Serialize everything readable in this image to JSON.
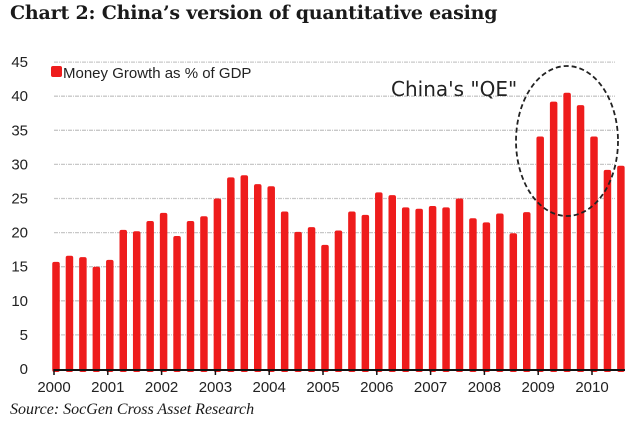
{
  "title": "Chart 2:  China’s version of quantitative easing",
  "source": "Source: SocGen Cross Asset Research",
  "chart_data": {
    "type": "bar",
    "title": "Chart 2:  China’s version of quantitative easing",
    "xlabel": "",
    "ylabel": "",
    "ylim": [
      0,
      45
    ],
    "yticks": [
      0,
      5,
      10,
      15,
      20,
      25,
      30,
      35,
      40,
      45
    ],
    "grid": true,
    "legend": {
      "position": "top-left",
      "entries": [
        "Money Growth as % of GDP"
      ]
    },
    "xtick_labels": [
      "2000",
      "2001",
      "2002",
      "2003",
      "2004",
      "2005",
      "2006",
      "2007",
      "2008",
      "2009",
      "2010"
    ],
    "frequency": "quarterly",
    "start": "2000Q1",
    "series": [
      {
        "name": "Money Growth as % of GDP",
        "color": "#ee1c1c",
        "values": [
          15.7,
          16.6,
          16.4,
          15.0,
          16.0,
          20.4,
          20.2,
          21.7,
          22.9,
          19.5,
          21.7,
          22.4,
          25.0,
          28.1,
          28.4,
          27.1,
          26.8,
          23.1,
          20.1,
          20.8,
          18.2,
          20.3,
          23.1,
          22.6,
          25.9,
          25.5,
          23.7,
          23.5,
          23.9,
          23.7,
          25.0,
          22.1,
          21.5,
          22.8,
          19.9,
          23.0,
          34.1,
          39.2,
          40.5,
          38.7,
          34.1,
          29.2,
          29.8
        ]
      }
    ],
    "annotations": [
      {
        "text": "China's \"QE\"",
        "highlight": "dashed ellipse around 2009 bars"
      }
    ]
  }
}
